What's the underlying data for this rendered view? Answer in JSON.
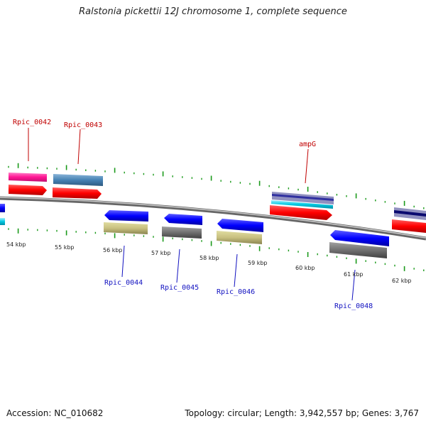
{
  "title": "Ralstonia pickettii 12J chromosome 1, complete sequence",
  "footer": {
    "accession": "Accession: NC_010682",
    "summary": "Topology: circular; Length: 3,942,557 bp; Genes: 3,767"
  },
  "scale_labels": [
    "54 kbp",
    "55 kbp",
    "56 kbp",
    "57 kbp",
    "58 kbp",
    "59 kbp",
    "60 kbp",
    "61 kbp",
    "62 kbp"
  ],
  "gene_labels": {
    "top": [
      "Rpic_0042",
      "Rpic_0043",
      "ampG"
    ],
    "bottom": [
      "Rpic_0044",
      "Rpic_0045",
      "Rpic_0046",
      "Rpic_0048"
    ]
  },
  "colors": {
    "forward_feature": "#ff0000",
    "reverse_feature": "#0000ff",
    "top_label": "#c00000",
    "bottom_label": "#1010c0",
    "tick": "#1a9a1a",
    "backbone": "#888888"
  }
}
